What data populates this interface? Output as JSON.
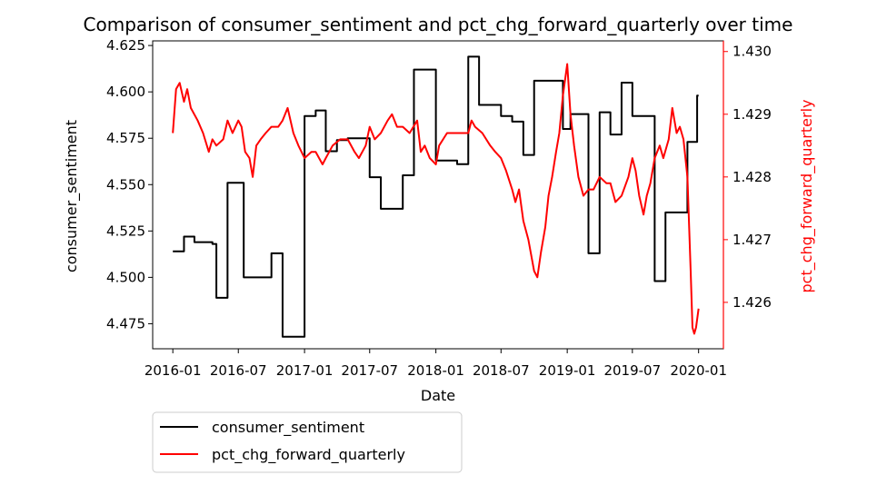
{
  "chart_data": {
    "type": "line",
    "title": "Comparison of consumer_sentiment and pct_chg_forward_quarterly over time",
    "xlabel": "Date",
    "ylabel_left": "consumer_sentiment",
    "ylabel_right": "pct_chg_forward_quarterly",
    "x_ticks": [
      "2016-01",
      "2016-07",
      "2017-01",
      "2017-07",
      "2018-01",
      "2018-07",
      "2019-01",
      "2019-07",
      "2020-01"
    ],
    "xlim": [
      "2015-11-06",
      "2020-03-10"
    ],
    "y_left_ticks": [
      "4.475",
      "4.500",
      "4.525",
      "4.550",
      "4.575",
      "4.600",
      "4.625"
    ],
    "y_left_lim": [
      4.4615,
      4.6275
    ],
    "y_right_ticks": [
      "1.426",
      "1.427",
      "1.428",
      "1.429",
      "1.430"
    ],
    "y_right_lim": [
      1.42526,
      1.43017
    ],
    "legend_position": "below-left",
    "grid": false,
    "colors": {
      "consumer_sentiment": "#000000",
      "pct_chg_forward_quarterly": "#ff0000"
    },
    "series": [
      {
        "name": "consumer_sentiment",
        "axis": "left",
        "color": "#000000",
        "points": [
          [
            "2016-01-01",
            4.514
          ],
          [
            "2016-02-01",
            4.514
          ],
          [
            "2016-02-01",
            4.522
          ],
          [
            "2016-03-01",
            4.522
          ],
          [
            "2016-03-01",
            4.519
          ],
          [
            "2016-04-20",
            4.519
          ],
          [
            "2016-04-20",
            4.518
          ],
          [
            "2016-05-01",
            4.518
          ],
          [
            "2016-05-01",
            4.489
          ],
          [
            "2016-06-01",
            4.489
          ],
          [
            "2016-06-01",
            4.551
          ],
          [
            "2016-07-16",
            4.551
          ],
          [
            "2016-07-16",
            4.5
          ],
          [
            "2016-10-01",
            4.5
          ],
          [
            "2016-10-01",
            4.513
          ],
          [
            "2016-11-01",
            4.513
          ],
          [
            "2016-11-01",
            4.468
          ],
          [
            "2017-01-01",
            4.468
          ],
          [
            "2017-01-01",
            4.587
          ],
          [
            "2017-02-01",
            4.587
          ],
          [
            "2017-02-01",
            4.59
          ],
          [
            "2017-03-01",
            4.59
          ],
          [
            "2017-03-01",
            4.568
          ],
          [
            "2017-04-01",
            4.568
          ],
          [
            "2017-04-01",
            4.574
          ],
          [
            "2017-05-01",
            4.574
          ],
          [
            "2017-05-01",
            4.575
          ],
          [
            "2017-07-01",
            4.575
          ],
          [
            "2017-07-01",
            4.554
          ],
          [
            "2017-08-01",
            4.554
          ],
          [
            "2017-08-01",
            4.537
          ],
          [
            "2017-10-01",
            4.537
          ],
          [
            "2017-10-01",
            4.555
          ],
          [
            "2017-11-01",
            4.555
          ],
          [
            "2017-11-01",
            4.612
          ],
          [
            "2018-01-01",
            4.612
          ],
          [
            "2018-01-01",
            4.563
          ],
          [
            "2018-03-01",
            4.563
          ],
          [
            "2018-03-01",
            4.561
          ],
          [
            "2018-04-01",
            4.561
          ],
          [
            "2018-04-01",
            4.619
          ],
          [
            "2018-05-01",
            4.619
          ],
          [
            "2018-05-01",
            4.593
          ],
          [
            "2018-07-01",
            4.593
          ],
          [
            "2018-07-01",
            4.587
          ],
          [
            "2018-08-01",
            4.587
          ],
          [
            "2018-08-01",
            4.584
          ],
          [
            "2018-09-01",
            4.584
          ],
          [
            "2018-09-01",
            4.566
          ],
          [
            "2018-10-01",
            4.566
          ],
          [
            "2018-10-01",
            4.606
          ],
          [
            "2018-12-20",
            4.606
          ],
          [
            "2018-12-20",
            4.58
          ],
          [
            "2019-01-10",
            4.58
          ],
          [
            "2019-01-10",
            4.588
          ],
          [
            "2019-03-01",
            4.588
          ],
          [
            "2019-03-01",
            4.513
          ],
          [
            "2019-04-01",
            4.513
          ],
          [
            "2019-04-01",
            4.589
          ],
          [
            "2019-05-01",
            4.589
          ],
          [
            "2019-05-01",
            4.577
          ],
          [
            "2019-06-01",
            4.577
          ],
          [
            "2019-06-01",
            4.605
          ],
          [
            "2019-07-01",
            4.605
          ],
          [
            "2019-07-01",
            4.587
          ],
          [
            "2019-09-01",
            4.587
          ],
          [
            "2019-09-01",
            4.498
          ],
          [
            "2019-10-01",
            4.498
          ],
          [
            "2019-10-01",
            4.535
          ],
          [
            "2019-12-01",
            4.535
          ],
          [
            "2019-12-01",
            4.573
          ],
          [
            "2019-12-28",
            4.573
          ],
          [
            "2019-12-28",
            4.598
          ],
          [
            "2020-01-01",
            4.598
          ]
        ]
      },
      {
        "name": "pct_chg_forward_quarterly",
        "axis": "right",
        "color": "#ff0000",
        "points": [
          [
            "2016-01-01",
            1.4287
          ],
          [
            "2016-01-10",
            1.4294
          ],
          [
            "2016-01-20",
            1.4295
          ],
          [
            "2016-02-01",
            1.4292
          ],
          [
            "2016-02-10",
            1.4294
          ],
          [
            "2016-02-20",
            1.4291
          ],
          [
            "2016-03-10",
            1.4289
          ],
          [
            "2016-03-25",
            1.4287
          ],
          [
            "2016-04-10",
            1.4284
          ],
          [
            "2016-04-20",
            1.4286
          ],
          [
            "2016-05-01",
            1.4285
          ],
          [
            "2016-05-20",
            1.4286
          ],
          [
            "2016-06-01",
            1.4289
          ],
          [
            "2016-06-15",
            1.4287
          ],
          [
            "2016-07-01",
            1.4289
          ],
          [
            "2016-07-10",
            1.4288
          ],
          [
            "2016-07-20",
            1.4284
          ],
          [
            "2016-08-01",
            1.4283
          ],
          [
            "2016-08-10",
            1.428
          ],
          [
            "2016-08-20",
            1.4285
          ],
          [
            "2016-09-01",
            1.4286
          ],
          [
            "2016-09-15",
            1.4287
          ],
          [
            "2016-10-01",
            1.4288
          ],
          [
            "2016-10-20",
            1.4288
          ],
          [
            "2016-11-01",
            1.4289
          ],
          [
            "2016-11-15",
            1.4291
          ],
          [
            "2016-12-01",
            1.4287
          ],
          [
            "2016-12-15",
            1.4285
          ],
          [
            "2017-01-01",
            1.4283
          ],
          [
            "2017-01-20",
            1.4284
          ],
          [
            "2017-02-01",
            1.4284
          ],
          [
            "2017-02-20",
            1.4282
          ],
          [
            "2017-03-01",
            1.4283
          ],
          [
            "2017-03-20",
            1.4285
          ],
          [
            "2017-04-10",
            1.4286
          ],
          [
            "2017-05-01",
            1.4286
          ],
          [
            "2017-05-20",
            1.4284
          ],
          [
            "2017-06-01",
            1.4283
          ],
          [
            "2017-06-20",
            1.4285
          ],
          [
            "2017-07-01",
            1.4288
          ],
          [
            "2017-07-15",
            1.4286
          ],
          [
            "2017-08-01",
            1.4287
          ],
          [
            "2017-08-20",
            1.4289
          ],
          [
            "2017-09-01",
            1.429
          ],
          [
            "2017-09-15",
            1.4288
          ],
          [
            "2017-10-01",
            1.4288
          ],
          [
            "2017-10-20",
            1.4287
          ],
          [
            "2017-11-10",
            1.4289
          ],
          [
            "2017-11-20",
            1.4284
          ],
          [
            "2017-12-01",
            1.4285
          ],
          [
            "2017-12-15",
            1.4283
          ],
          [
            "2018-01-01",
            1.4282
          ],
          [
            "2018-01-10",
            1.4285
          ],
          [
            "2018-02-01",
            1.4287
          ],
          [
            "2018-03-01",
            1.4287
          ],
          [
            "2018-04-01",
            1.4287
          ],
          [
            "2018-04-10",
            1.4289
          ],
          [
            "2018-04-20",
            1.4288
          ],
          [
            "2018-05-10",
            1.4287
          ],
          [
            "2018-06-01",
            1.4285
          ],
          [
            "2018-06-15",
            1.4284
          ],
          [
            "2018-07-01",
            1.4283
          ],
          [
            "2018-07-15",
            1.4281
          ],
          [
            "2018-08-01",
            1.4278
          ],
          [
            "2018-08-10",
            1.4276
          ],
          [
            "2018-08-20",
            1.4278
          ],
          [
            "2018-09-01",
            1.4273
          ],
          [
            "2018-09-15",
            1.427
          ],
          [
            "2018-10-01",
            1.4265
          ],
          [
            "2018-10-10",
            1.4264
          ],
          [
            "2018-10-20",
            1.4268
          ],
          [
            "2018-11-01",
            1.4272
          ],
          [
            "2018-11-10",
            1.4277
          ],
          [
            "2018-11-20",
            1.428
          ],
          [
            "2018-12-01",
            1.4284
          ],
          [
            "2018-12-10",
            1.4287
          ],
          [
            "2018-12-20",
            1.4293
          ],
          [
            "2019-01-01",
            1.4298
          ],
          [
            "2019-01-10",
            1.429
          ],
          [
            "2019-01-20",
            1.4285
          ],
          [
            "2019-02-01",
            1.428
          ],
          [
            "2019-02-15",
            1.4277
          ],
          [
            "2019-03-01",
            1.4278
          ],
          [
            "2019-03-15",
            1.4278
          ],
          [
            "2019-04-01",
            1.428
          ],
          [
            "2019-04-20",
            1.4279
          ],
          [
            "2019-05-01",
            1.4279
          ],
          [
            "2019-05-15",
            1.4276
          ],
          [
            "2019-06-01",
            1.4277
          ],
          [
            "2019-06-20",
            1.428
          ],
          [
            "2019-07-01",
            1.4283
          ],
          [
            "2019-07-10",
            1.4281
          ],
          [
            "2019-07-20",
            1.4277
          ],
          [
            "2019-08-01",
            1.4274
          ],
          [
            "2019-08-10",
            1.4277
          ],
          [
            "2019-08-20",
            1.4279
          ],
          [
            "2019-09-01",
            1.4283
          ],
          [
            "2019-09-15",
            1.4285
          ],
          [
            "2019-09-25",
            1.4283
          ],
          [
            "2019-10-10",
            1.4286
          ],
          [
            "2019-10-20",
            1.4291
          ],
          [
            "2019-11-01",
            1.4287
          ],
          [
            "2019-11-10",
            1.4288
          ],
          [
            "2019-11-20",
            1.4286
          ],
          [
            "2019-12-01",
            1.428
          ],
          [
            "2019-12-10",
            1.4265
          ],
          [
            "2019-12-15",
            1.4256
          ],
          [
            "2019-12-20",
            1.4255
          ],
          [
            "2019-12-25",
            1.4256
          ],
          [
            "2020-01-01",
            1.4259
          ]
        ]
      }
    ]
  }
}
